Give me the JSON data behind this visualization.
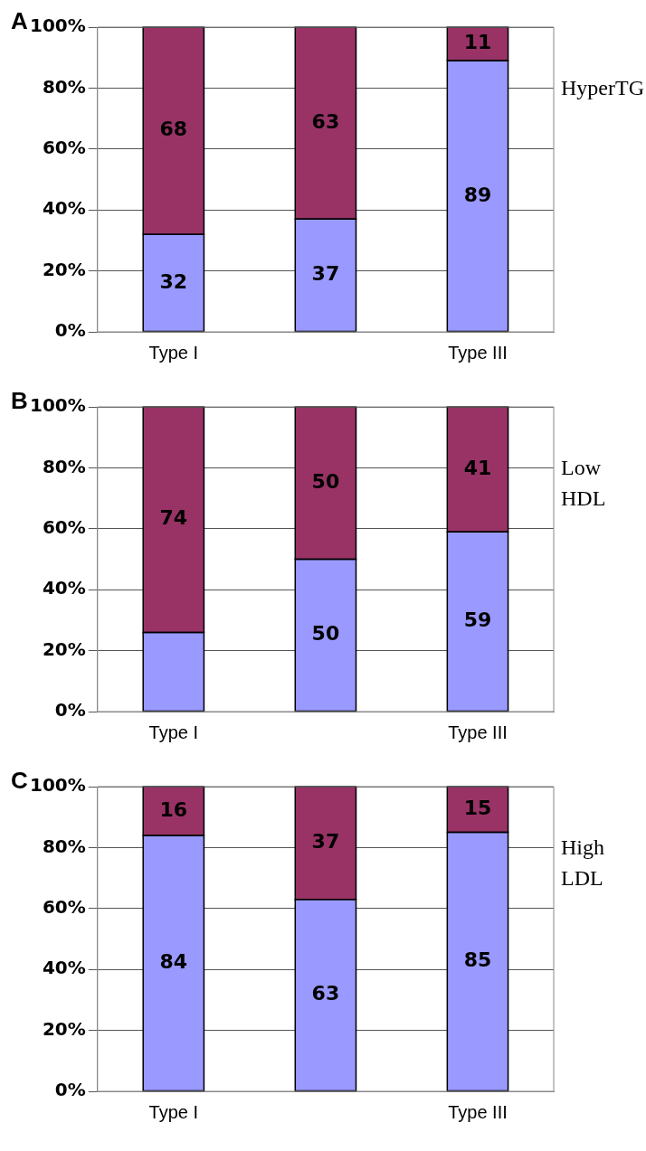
{
  "chart_data": [
    {
      "type": "bar",
      "title": "A",
      "stacked": true,
      "categories": [
        "Type I",
        null,
        "Type III"
      ],
      "ylim": [
        0,
        100
      ],
      "yticks": [
        {
          "value": 0,
          "label": "0%"
        },
        {
          "value": 20,
          "label": "20%"
        },
        {
          "value": 40,
          "label": "40%"
        },
        {
          "value": 60,
          "label": "60%"
        },
        {
          "value": 80,
          "label": "80%"
        },
        {
          "value": 100,
          "label": "100%"
        }
      ],
      "grid": "y",
      "legend": false,
      "annotations": [
        "HyperTG"
      ],
      "series": [
        {
          "color": "#9999ff",
          "values": [
            32,
            37,
            89
          ],
          "value_labels": [
            "32",
            "37",
            "89"
          ]
        },
        {
          "color": "#993366",
          "values": [
            68,
            63,
            11
          ],
          "value_labels": [
            "68",
            "63",
            "11"
          ]
        }
      ]
    },
    {
      "type": "bar",
      "title": "B",
      "stacked": true,
      "categories": [
        "Type I",
        null,
        "Type III"
      ],
      "ylim": [
        0,
        100
      ],
      "yticks": [
        {
          "value": 0,
          "label": "0%"
        },
        {
          "value": 20,
          "label": "20%"
        },
        {
          "value": 40,
          "label": "40%"
        },
        {
          "value": 60,
          "label": "60%"
        },
        {
          "value": 80,
          "label": "80%"
        },
        {
          "value": 100,
          "label": "100%"
        }
      ],
      "grid": "y",
      "legend": false,
      "annotations": [
        "Low HDL"
      ],
      "series": [
        {
          "color": "#9999ff",
          "values": [
            26,
            50,
            59
          ],
          "value_labels": [
            null,
            "50",
            "59"
          ]
        },
        {
          "color": "#993366",
          "values": [
            74,
            50,
            41
          ],
          "value_labels": [
            "74",
            "50",
            "41"
          ]
        }
      ]
    },
    {
      "type": "bar",
      "title": "C",
      "stacked": true,
      "categories": [
        "Type I",
        null,
        "Type III"
      ],
      "ylim": [
        0,
        100
      ],
      "yticks": [
        {
          "value": 0,
          "label": "0%"
        },
        {
          "value": 20,
          "label": "20%"
        },
        {
          "value": 40,
          "label": "40%"
        },
        {
          "value": 60,
          "label": "60%"
        },
        {
          "value": 80,
          "label": "80%"
        },
        {
          "value": 100,
          "label": "100%"
        }
      ],
      "grid": "y",
      "legend": false,
      "annotations": [
        "High LDL"
      ],
      "series": [
        {
          "color": "#9999ff",
          "values": [
            84,
            63,
            85
          ],
          "value_labels": [
            "84",
            "63",
            "85"
          ]
        },
        {
          "color": "#993366",
          "values": [
            16,
            37,
            15
          ],
          "value_labels": [
            "16",
            "37",
            "15"
          ]
        }
      ]
    }
  ]
}
